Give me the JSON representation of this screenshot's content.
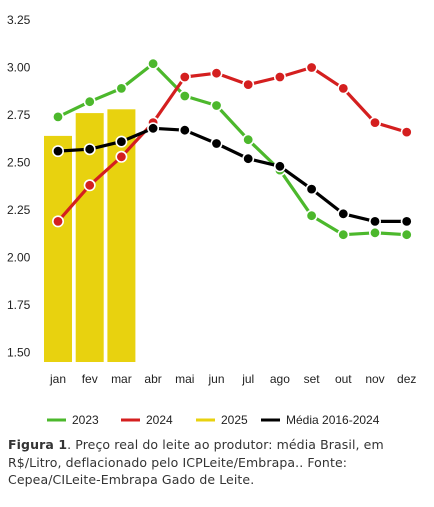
{
  "chart_data": {
    "type": "bar+line",
    "categories": [
      "jan",
      "fev",
      "mar",
      "abr",
      "mai",
      "jun",
      "jul",
      "ago",
      "set",
      "out",
      "nov",
      "dez"
    ],
    "ylim": [
      1.45,
      3.25
    ],
    "yticks": [
      "1.50",
      "1.75",
      "2.00",
      "2.25",
      "2.50",
      "2.75",
      "3.00",
      "3.25"
    ],
    "grid": false,
    "legend_position": "bottom",
    "bar_series": {
      "name": "2025",
      "color": "#e8d20f",
      "values": [
        2.64,
        2.76,
        2.78
      ]
    },
    "line_series": [
      {
        "name": "2023",
        "color": "#4cb82c",
        "values": [
          2.74,
          2.82,
          2.89,
          3.02,
          2.85,
          2.8,
          2.62,
          2.46,
          2.22,
          2.12,
          2.13,
          2.12
        ]
      },
      {
        "name": "2024",
        "color": "#d41f1f",
        "values": [
          2.19,
          2.38,
          2.53,
          2.71,
          2.95,
          2.97,
          2.91,
          2.95,
          3.0,
          2.89,
          2.71,
          2.66
        ]
      },
      {
        "name": "Média 2016-2024",
        "color": "#000000",
        "values": [
          2.56,
          2.57,
          2.61,
          2.68,
          2.67,
          2.6,
          2.52,
          2.48,
          2.36,
          2.23,
          2.19,
          2.19
        ]
      }
    ],
    "legend": [
      "2023",
      "2024",
      "2025",
      "Média 2016-2024"
    ]
  },
  "caption": {
    "label": "Figura 1",
    "text": ". Preço real do leite ao produtor: média Brasil, em R$/Litro, deflacionado pelo ICPLeite/Embrapa.. Fonte: Cepea/CILeite-Embrapa Gado de Leite."
  }
}
